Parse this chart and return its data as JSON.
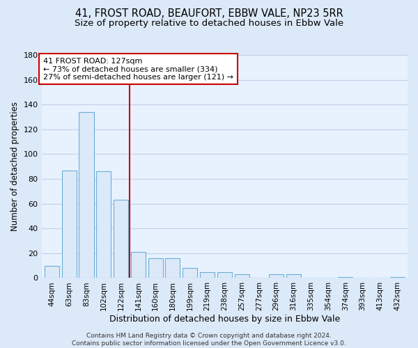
{
  "title": "41, FROST ROAD, BEAUFORT, EBBW VALE, NP23 5RR",
  "subtitle": "Size of property relative to detached houses in Ebbw Vale",
  "xlabel": "Distribution of detached houses by size in Ebbw Vale",
  "ylabel": "Number of detached properties",
  "categories": [
    "44sqm",
    "63sqm",
    "83sqm",
    "102sqm",
    "122sqm",
    "141sqm",
    "160sqm",
    "180sqm",
    "199sqm",
    "219sqm",
    "238sqm",
    "257sqm",
    "277sqm",
    "296sqm",
    "316sqm",
    "335sqm",
    "354sqm",
    "374sqm",
    "393sqm",
    "413sqm",
    "432sqm"
  ],
  "values": [
    10,
    87,
    134,
    86,
    63,
    21,
    16,
    16,
    8,
    5,
    5,
    3,
    0,
    3,
    3,
    0,
    0,
    1,
    0,
    0,
    1
  ],
  "bar_color": "#dce9f8",
  "bar_edge_color": "#6baed6",
  "reference_line_x": 4.5,
  "reference_line_color": "#cc0000",
  "annotation_text": "41 FROST ROAD: 127sqm\n← 73% of detached houses are smaller (334)\n27% of semi-detached houses are larger (121) →",
  "annotation_box_color": "#ffffff",
  "annotation_box_edge": "#cc0000",
  "ylim": [
    0,
    180
  ],
  "yticks": [
    0,
    20,
    40,
    60,
    80,
    100,
    120,
    140,
    160,
    180
  ],
  "footnote": "Contains HM Land Registry data © Crown copyright and database right 2024.\nContains public sector information licensed under the Open Government Licence v3.0.",
  "bg_color": "#dce9f8",
  "plot_bg_color": "#e8f2ff",
  "grid_color": "#c0d0e8",
  "title_fontsize": 10.5,
  "subtitle_fontsize": 9.5
}
